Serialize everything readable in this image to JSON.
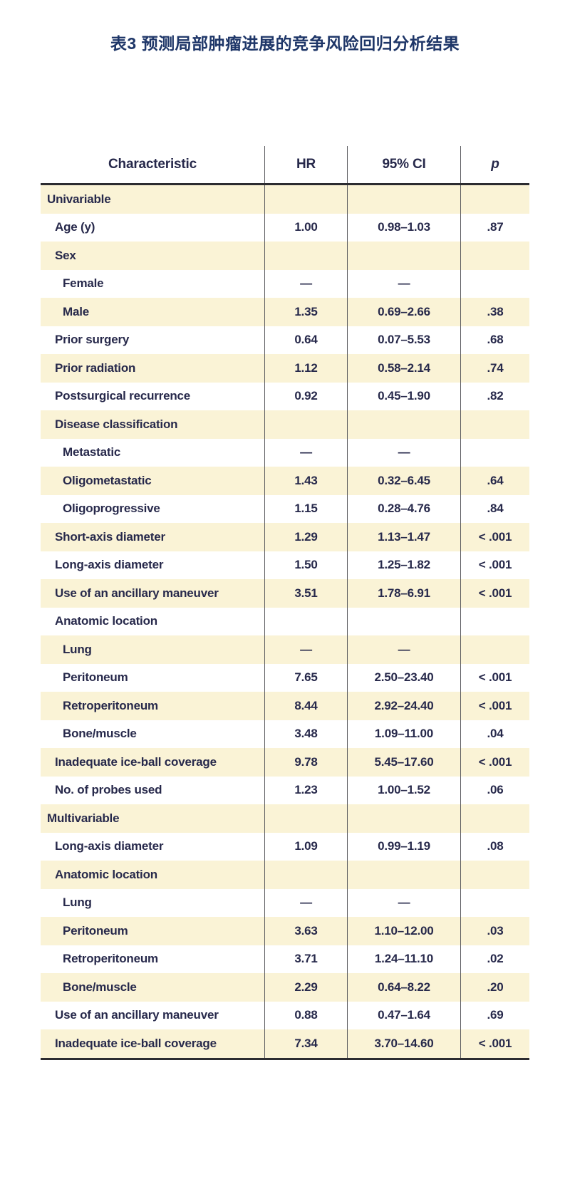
{
  "title": "表3 预测局部肿瘤进展的竞争风险回归分析结果",
  "colors": {
    "title_navy": "#1e3668",
    "text_navy": "#27294b",
    "zebra_cream": "#faf3d6",
    "rule_dark": "#2c2c30",
    "divider_gray": "#5a5a5e"
  },
  "table": {
    "columns": [
      "Characteristic",
      "HR",
      "95% CI",
      "p"
    ],
    "rows": [
      {
        "label": "Univariable",
        "indent": 0,
        "hr": "",
        "ci": "",
        "p": ""
      },
      {
        "label": "Age (y)",
        "indent": 1,
        "hr": "1.00",
        "ci": "0.98–1.03",
        "p": ".87"
      },
      {
        "label": "Sex",
        "indent": 1,
        "hr": "",
        "ci": "",
        "p": ""
      },
      {
        "label": "Female",
        "indent": 2,
        "hr": "—",
        "ci": "—",
        "p": ""
      },
      {
        "label": "Male",
        "indent": 2,
        "hr": "1.35",
        "ci": "0.69–2.66",
        "p": ".38"
      },
      {
        "label": "Prior surgery",
        "indent": 1,
        "hr": "0.64",
        "ci": "0.07–5.53",
        "p": ".68"
      },
      {
        "label": "Prior radiation",
        "indent": 1,
        "hr": "1.12",
        "ci": "0.58–2.14",
        "p": ".74"
      },
      {
        "label": "Postsurgical recurrence",
        "indent": 1,
        "hr": "0.92",
        "ci": "0.45–1.90",
        "p": ".82"
      },
      {
        "label": "Disease classification",
        "indent": 1,
        "hr": "",
        "ci": "",
        "p": ""
      },
      {
        "label": "Metastatic",
        "indent": 2,
        "hr": "—",
        "ci": "—",
        "p": ""
      },
      {
        "label": "Oligometastatic",
        "indent": 2,
        "hr": "1.43",
        "ci": "0.32–6.45",
        "p": ".64"
      },
      {
        "label": "Oligoprogressive",
        "indent": 2,
        "hr": "1.15",
        "ci": "0.28–4.76",
        "p": ".84"
      },
      {
        "label": "Short-axis diameter",
        "indent": 1,
        "hr": "1.29",
        "ci": "1.13–1.47",
        "p": "< .001"
      },
      {
        "label": "Long-axis diameter",
        "indent": 1,
        "hr": "1.50",
        "ci": "1.25–1.82",
        "p": "< .001"
      },
      {
        "label": "Use of an ancillary maneuver",
        "indent": 1,
        "hr": "3.51",
        "ci": "1.78–6.91",
        "p": "< .001"
      },
      {
        "label": "Anatomic location",
        "indent": 1,
        "hr": "",
        "ci": "",
        "p": ""
      },
      {
        "label": "Lung",
        "indent": 2,
        "hr": "—",
        "ci": "—",
        "p": ""
      },
      {
        "label": "Peritoneum",
        "indent": 2,
        "hr": "7.65",
        "ci": "2.50–23.40",
        "p": "< .001"
      },
      {
        "label": "Retroperitoneum",
        "indent": 2,
        "hr": "8.44",
        "ci": "2.92–24.40",
        "p": "< .001"
      },
      {
        "label": "Bone/muscle",
        "indent": 2,
        "hr": "3.48",
        "ci": "1.09–11.00",
        "p": ".04"
      },
      {
        "label": "Inadequate ice-ball coverage",
        "indent": 1,
        "hr": "9.78",
        "ci": "5.45–17.60",
        "p": "< .001"
      },
      {
        "label": "No. of probes used",
        "indent": 1,
        "hr": "1.23",
        "ci": "1.00–1.52",
        "p": ".06"
      },
      {
        "label": "Multivariable",
        "indent": 0,
        "hr": "",
        "ci": "",
        "p": ""
      },
      {
        "label": "Long-axis diameter",
        "indent": 1,
        "hr": "1.09",
        "ci": "0.99–1.19",
        "p": ".08"
      },
      {
        "label": "Anatomic location",
        "indent": 1,
        "hr": "",
        "ci": "",
        "p": ""
      },
      {
        "label": "Lung",
        "indent": 2,
        "hr": "—",
        "ci": "—",
        "p": ""
      },
      {
        "label": "Peritoneum",
        "indent": 2,
        "hr": "3.63",
        "ci": "1.10–12.00",
        "p": ".03"
      },
      {
        "label": "Retroperitoneum",
        "indent": 2,
        "hr": "3.71",
        "ci": "1.24–11.10",
        "p": ".02"
      },
      {
        "label": "Bone/muscle",
        "indent": 2,
        "hr": "2.29",
        "ci": "0.64–8.22",
        "p": ".20"
      },
      {
        "label": "Use of an ancillary maneuver",
        "indent": 1,
        "hr": "0.88",
        "ci": "0.47–1.64",
        "p": ".69"
      },
      {
        "label": "Inadequate ice-ball coverage",
        "indent": 1,
        "hr": "7.34",
        "ci": "3.70–14.60",
        "p": "< .001"
      }
    ]
  }
}
